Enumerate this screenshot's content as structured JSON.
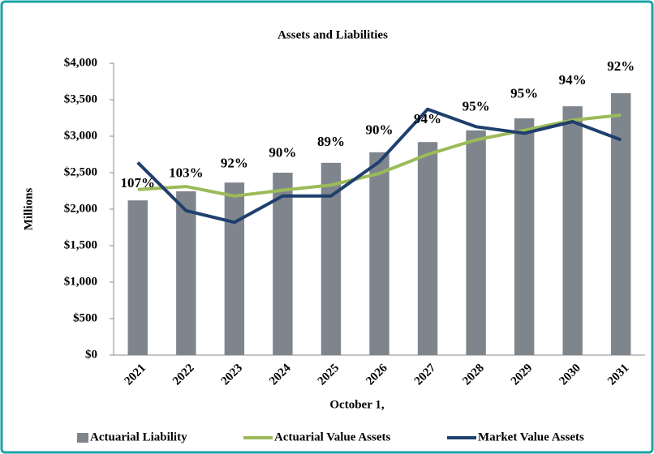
{
  "chart_data": {
    "type": "bar-line",
    "title": "Assets and Liabilities",
    "x_label": "October 1,",
    "y_label": "Millions",
    "categories": [
      "2021",
      "2022",
      "2023",
      "2024",
      "2025",
      "2026",
      "2027",
      "2028",
      "2029",
      "2030",
      "2031"
    ],
    "series": [
      {
        "name": "Actuarial Liability",
        "type": "bar",
        "color": "#7f858c",
        "values": [
          2120,
          2245,
          2365,
          2500,
          2635,
          2780,
          2920,
          3080,
          3245,
          3410,
          3590
        ]
      },
      {
        "name": "Actuarial Value Assets",
        "type": "line",
        "color": "#9bbb59",
        "values": [
          2270,
          2310,
          2180,
          2260,
          2330,
          2490,
          2750,
          2950,
          3080,
          3220,
          3290
        ]
      },
      {
        "name": "Market Value Assets",
        "type": "line",
        "color": "#1f3f6e",
        "values": [
          2640,
          1980,
          1820,
          2180,
          2180,
          2650,
          3370,
          3130,
          3040,
          3200,
          2950
        ]
      }
    ],
    "annotations": [
      "107%",
      "103%",
      "92%",
      "90%",
      "89%",
      "90%",
      "94%",
      "95%",
      "95%",
      "94%",
      "92%"
    ],
    "ylim": [
      0,
      4000
    ],
    "yticks": [
      {
        "value": 0,
        "label": "$0"
      },
      {
        "value": 500,
        "label": "$500"
      },
      {
        "value": 1000,
        "label": "$1,000"
      },
      {
        "value": 1500,
        "label": "$1,500"
      },
      {
        "value": 2000,
        "label": "$2,000"
      },
      {
        "value": 2500,
        "label": "$2,500"
      },
      {
        "value": 3000,
        "label": "$3,000"
      },
      {
        "value": 3500,
        "label": "$3,500"
      },
      {
        "value": 4000,
        "label": "$4,000"
      }
    ],
    "legend": "bottom"
  }
}
